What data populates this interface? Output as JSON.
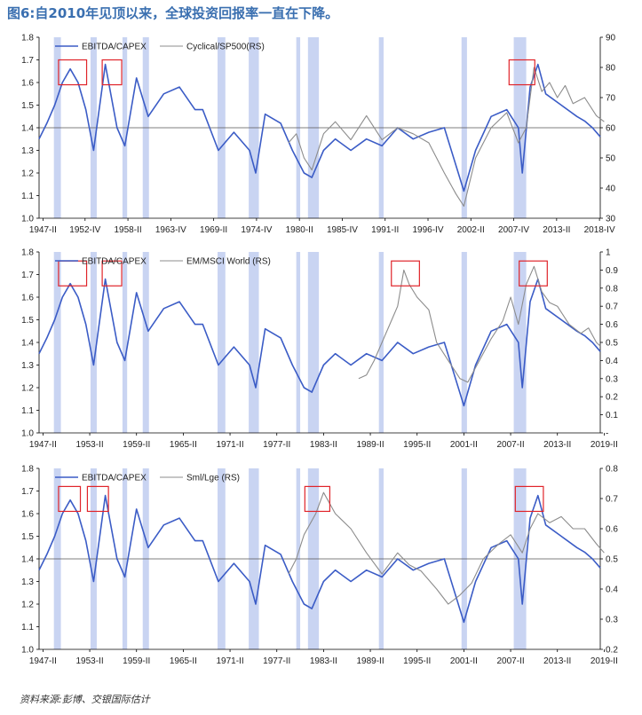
{
  "figure_title": "图6:自2010年见顶以来，全球投资回报率一直在下降。",
  "source_note": "资料来源:彭博、交银国际估计",
  "colors": {
    "primary": "#3b5cc6",
    "secondary": "#8c8c8c",
    "recession": "#c9d4f2",
    "highlight": "#e0242a",
    "axis": "#000000"
  },
  "chart_data": [
    {
      "type": "line",
      "legend": [
        "EBITDA/CAPEX",
        "Cyclical/SP500(RS)"
      ],
      "x_range": [
        1947,
        2019
      ],
      "x_ticks": [
        "1947-II",
        "1952-IV",
        "1958-II",
        "1963-IV",
        "1969-II",
        "1974-IV",
        "1980-II",
        "1985-IV",
        "1991-II",
        "1996-IV",
        "2002-II",
        "2007-IV",
        "2013-II",
        "2018-IV"
      ],
      "x_tick_years": [
        1947.5,
        1952.9,
        1958.4,
        1963.9,
        1969.4,
        1974.9,
        1980.4,
        1985.9,
        1991.4,
        1996.9,
        2002.4,
        2007.9,
        2013.4,
        2018.9
      ],
      "y_left": {
        "range": [
          1.0,
          1.8
        ],
        "ticks": [
          "1.0",
          "1.1",
          "1.2",
          "1.3",
          "1.4",
          "1.5",
          "1.6",
          "1.7",
          "1.8"
        ],
        "values": [
          1.0,
          1.1,
          1.2,
          1.3,
          1.4,
          1.5,
          1.6,
          1.7,
          1.8
        ]
      },
      "y_right": {
        "range": [
          30,
          90
        ],
        "ticks": [
          "30",
          "40",
          "50",
          "60",
          "70",
          "80",
          "90"
        ],
        "values": [
          30,
          40,
          50,
          60,
          70,
          80,
          90
        ]
      },
      "reference_line_left": 1.4,
      "recessions": [
        [
          1948.9,
          1949.8
        ],
        [
          1953.6,
          1954.4
        ],
        [
          1957.7,
          1958.3
        ],
        [
          1960.3,
          1961.1
        ],
        [
          1969.9,
          1970.9
        ],
        [
          1973.9,
          1975.2
        ],
        [
          1980.0,
          1980.5
        ],
        [
          1981.5,
          1982.9
        ],
        [
          1990.6,
          1991.2
        ],
        [
          2001.2,
          2001.9
        ],
        [
          2007.9,
          2009.5
        ]
      ],
      "highlights": [
        [
          1949.5,
          1953.1
        ],
        [
          1955.1,
          1957.6
        ],
        [
          2007.3,
          2010.6
        ]
      ],
      "highlight_value_range": [
        1.59,
        1.7
      ],
      "series": [
        {
          "name": "EBITDA/CAPEX",
          "axis": "left",
          "x": [
            1947.0,
            1948.0,
            1949.0,
            1950.0,
            1951.0,
            1952.0,
            1953.0,
            1954.0,
            1955.5,
            1957.0,
            1958.0,
            1959.5,
            1961.0,
            1963.0,
            1965.0,
            1967.0,
            1968.0,
            1970.0,
            1972.0,
            1974.0,
            1974.8,
            1976.0,
            1978.0,
            1979.5,
            1981.0,
            1982.0,
            1983.5,
            1985.0,
            1987.0,
            1989.0,
            1991.0,
            1993.0,
            1995.0,
            1997.0,
            1999.0,
            2001.5,
            2003.0,
            2005.0,
            2007.0,
            2008.5,
            2009.0,
            2010.0,
            2011.0,
            2012.0,
            2014.0,
            2016.0,
            2017.0,
            2018.0,
            2019.0
          ],
          "values": [
            1.35,
            1.42,
            1.5,
            1.6,
            1.66,
            1.6,
            1.48,
            1.3,
            1.68,
            1.4,
            1.32,
            1.62,
            1.45,
            1.55,
            1.58,
            1.48,
            1.48,
            1.3,
            1.38,
            1.3,
            1.2,
            1.46,
            1.42,
            1.3,
            1.2,
            1.18,
            1.3,
            1.35,
            1.3,
            1.35,
            1.32,
            1.4,
            1.35,
            1.38,
            1.4,
            1.12,
            1.3,
            1.45,
            1.48,
            1.4,
            1.2,
            1.58,
            1.68,
            1.55,
            1.5,
            1.45,
            1.43,
            1.4,
            1.36
          ]
        },
        {
          "name": "Cyclical/SP500(RS)",
          "axis": "right",
          "x": [
            1979.0,
            1980.0,
            1981.0,
            1982.0,
            1983.5,
            1985.0,
            1987.0,
            1989.0,
            1991.0,
            1993.0,
            1995.0,
            1997.0,
            1999.0,
            2000.5,
            2001.5,
            2003.0,
            2005.0,
            2007.0,
            2008.5,
            2009.5,
            2010.5,
            2011.5,
            2012.5,
            2013.5,
            2014.5,
            2015.5,
            2017.0,
            2018.5,
            2019.5
          ],
          "values": [
            55,
            58,
            50,
            46,
            58,
            62,
            56,
            64,
            56,
            60,
            58,
            55,
            45,
            38,
            34,
            50,
            60,
            65,
            55,
            60,
            80,
            72,
            75,
            70,
            74,
            68,
            70,
            64,
            62
          ]
        }
      ]
    },
    {
      "type": "line",
      "legend": [
        "EBITDA/CAPEX",
        "EM/MSCI World (RS)"
      ],
      "x_range": [
        1947,
        2019
      ],
      "x_ticks": [
        "1947-II",
        "1953-II",
        "1959-II",
        "1965-II",
        "1971-II",
        "1977-II",
        "1983-II",
        "1989-II",
        "1995-II",
        "2001-II",
        "2007-II",
        "2013-II",
        "2019-II"
      ],
      "x_tick_years": [
        1947.5,
        1953.5,
        1959.5,
        1965.5,
        1971.5,
        1977.5,
        1983.5,
        1989.5,
        1995.5,
        2001.5,
        2007.5,
        2013.5,
        2019.5
      ],
      "y_left": {
        "range": [
          1.0,
          1.8
        ],
        "ticks": [
          "1.0",
          "1.1",
          "1.2",
          "1.3",
          "1.4",
          "1.5",
          "1.6",
          "1.7",
          "1.8"
        ],
        "values": [
          1.0,
          1.1,
          1.2,
          1.3,
          1.4,
          1.5,
          1.6,
          1.7,
          1.8
        ]
      },
      "y_right": {
        "range": [
          0.0,
          1.0
        ],
        "ticks": [
          "-",
          "0.1",
          "0.2",
          "0.3",
          "0.4",
          "0.5",
          "0.6",
          "0.7",
          "0.8",
          "0.9",
          "1"
        ],
        "values": [
          0.0,
          0.1,
          0.2,
          0.3,
          0.4,
          0.5,
          0.6,
          0.7,
          0.8,
          0.9,
          1.0
        ]
      },
      "recessions": [
        [
          1948.9,
          1949.8
        ],
        [
          1953.6,
          1954.4
        ],
        [
          1957.7,
          1958.3
        ],
        [
          1960.3,
          1961.1
        ],
        [
          1969.9,
          1970.9
        ],
        [
          1973.9,
          1975.2
        ],
        [
          1980.0,
          1980.5
        ],
        [
          1981.5,
          1982.9
        ],
        [
          1990.6,
          1991.2
        ],
        [
          2001.2,
          2001.9
        ],
        [
          2007.9,
          2009.5
        ]
      ],
      "highlights": [
        [
          1949.5,
          1953.1
        ],
        [
          1955.1,
          1957.6
        ],
        [
          1992.2,
          1995.8
        ],
        [
          2008.6,
          2012.2
        ]
      ],
      "highlight_value_range": [
        1.65,
        1.76
      ],
      "series": [
        {
          "name": "EBITDA/CAPEX",
          "axis": "left",
          "x": [
            1947.0,
            1948.0,
            1949.0,
            1950.0,
            1951.0,
            1952.0,
            1953.0,
            1954.0,
            1955.5,
            1957.0,
            1958.0,
            1959.5,
            1961.0,
            1963.0,
            1965.0,
            1967.0,
            1968.0,
            1970.0,
            1972.0,
            1974.0,
            1974.8,
            1976.0,
            1978.0,
            1979.5,
            1981.0,
            1982.0,
            1983.5,
            1985.0,
            1987.0,
            1989.0,
            1991.0,
            1993.0,
            1995.0,
            1997.0,
            1999.0,
            2001.5,
            2003.0,
            2005.0,
            2007.0,
            2008.5,
            2009.0,
            2010.0,
            2011.0,
            2012.0,
            2014.0,
            2016.0,
            2017.0,
            2018.0,
            2019.0
          ],
          "values": [
            1.35,
            1.42,
            1.5,
            1.6,
            1.66,
            1.6,
            1.48,
            1.3,
            1.68,
            1.4,
            1.32,
            1.62,
            1.45,
            1.55,
            1.58,
            1.48,
            1.48,
            1.3,
            1.38,
            1.3,
            1.2,
            1.46,
            1.42,
            1.3,
            1.2,
            1.18,
            1.3,
            1.35,
            1.3,
            1.35,
            1.32,
            1.4,
            1.35,
            1.38,
            1.4,
            1.12,
            1.3,
            1.45,
            1.48,
            1.4,
            1.2,
            1.58,
            1.68,
            1.55,
            1.5,
            1.45,
            1.43,
            1.4,
            1.36
          ]
        },
        {
          "name": "EM/MSCI World (RS)",
          "axis": "right",
          "x": [
            1988.0,
            1989.0,
            1990.0,
            1991.0,
            1992.0,
            1993.0,
            1993.8,
            1994.5,
            1995.5,
            1997.0,
            1998.0,
            1999.5,
            2001.0,
            2002.0,
            2003.5,
            2005.0,
            2006.5,
            2007.5,
            2008.5,
            2009.5,
            2010.5,
            2011.5,
            2012.5,
            2013.5,
            2015.0,
            2016.5,
            2017.5,
            2018.5,
            2019.0
          ],
          "values": [
            0.3,
            0.32,
            0.4,
            0.5,
            0.6,
            0.7,
            0.9,
            0.82,
            0.75,
            0.68,
            0.5,
            0.4,
            0.3,
            0.28,
            0.4,
            0.52,
            0.62,
            0.75,
            0.6,
            0.82,
            0.92,
            0.78,
            0.72,
            0.7,
            0.6,
            0.55,
            0.58,
            0.5,
            0.48
          ]
        }
      ]
    },
    {
      "type": "line",
      "legend": [
        "EBITDA/CAPEX",
        "Sml/Lge (RS)"
      ],
      "x_range": [
        1947,
        2019
      ],
      "x_ticks": [
        "1947-II",
        "1953-II",
        "1959-II",
        "1965-II",
        "1971-II",
        "1977-II",
        "1983-II",
        "1989-II",
        "1995-II",
        "2001-II",
        "2007-II",
        "2013-II",
        "2019-II"
      ],
      "x_tick_years": [
        1947.5,
        1953.5,
        1959.5,
        1965.5,
        1971.5,
        1977.5,
        1983.5,
        1989.5,
        1995.5,
        2001.5,
        2007.5,
        2013.5,
        2019.5
      ],
      "y_left": {
        "range": [
          1.0,
          1.8
        ],
        "ticks": [
          "1.0",
          "1.1",
          "1.2",
          "1.3",
          "1.4",
          "1.5",
          "1.6",
          "1.7",
          "1.8"
        ],
        "values": [
          1.0,
          1.1,
          1.2,
          1.3,
          1.4,
          1.5,
          1.6,
          1.7,
          1.8
        ]
      },
      "y_right": {
        "range": [
          0.2,
          0.8
        ],
        "ticks": [
          "0.2",
          "0.3",
          "0.4",
          "0.5",
          "0.6",
          "0.7",
          "0.8"
        ],
        "values": [
          0.2,
          0.3,
          0.4,
          0.5,
          0.6,
          0.7,
          0.8
        ]
      },
      "reference_line_left": 1.4,
      "recessions": [
        [
          1948.9,
          1949.8
        ],
        [
          1953.6,
          1954.4
        ],
        [
          1957.7,
          1958.3
        ],
        [
          1960.3,
          1961.1
        ],
        [
          1969.9,
          1970.9
        ],
        [
          1973.9,
          1975.2
        ],
        [
          1980.0,
          1980.5
        ],
        [
          1981.5,
          1982.9
        ],
        [
          1990.6,
          1991.2
        ],
        [
          2001.2,
          2001.9
        ],
        [
          2007.9,
          2009.5
        ]
      ],
      "highlights": [
        [
          1949.5,
          1952.3
        ],
        [
          1953.2,
          1955.9
        ],
        [
          1981.1,
          1984.3
        ],
        [
          2008.1,
          2011.7
        ]
      ],
      "highlight_value_range": [
        1.61,
        1.72
      ],
      "series": [
        {
          "name": "EBITDA/CAPEX",
          "axis": "left",
          "x": [
            1947.0,
            1948.0,
            1949.0,
            1950.0,
            1951.0,
            1952.0,
            1953.0,
            1954.0,
            1955.5,
            1957.0,
            1958.0,
            1959.5,
            1961.0,
            1963.0,
            1965.0,
            1967.0,
            1968.0,
            1970.0,
            1972.0,
            1974.0,
            1974.8,
            1976.0,
            1978.0,
            1979.5,
            1981.0,
            1982.0,
            1983.5,
            1985.0,
            1987.0,
            1989.0,
            1991.0,
            1993.0,
            1995.0,
            1997.0,
            1999.0,
            2001.5,
            2003.0,
            2005.0,
            2007.0,
            2008.5,
            2009.0,
            2010.0,
            2011.0,
            2012.0,
            2014.0,
            2016.0,
            2017.0,
            2018.0,
            2019.0
          ],
          "values": [
            1.35,
            1.42,
            1.5,
            1.6,
            1.66,
            1.6,
            1.48,
            1.3,
            1.68,
            1.4,
            1.32,
            1.62,
            1.45,
            1.55,
            1.58,
            1.48,
            1.48,
            1.3,
            1.38,
            1.3,
            1.2,
            1.46,
            1.42,
            1.3,
            1.2,
            1.18,
            1.3,
            1.35,
            1.3,
            1.35,
            1.32,
            1.4,
            1.35,
            1.38,
            1.4,
            1.12,
            1.3,
            1.45,
            1.48,
            1.4,
            1.2,
            1.58,
            1.68,
            1.55,
            1.5,
            1.45,
            1.43,
            1.4,
            1.36
          ]
        },
        {
          "name": "Sml/Lge (RS)",
          "axis": "right",
          "x": [
            1979.0,
            1980.0,
            1981.0,
            1982.5,
            1983.5,
            1985.0,
            1987.0,
            1989.0,
            1991.0,
            1993.0,
            1994.5,
            1996.0,
            1998.0,
            1999.5,
            2001.0,
            2002.5,
            2004.0,
            2006.0,
            2007.5,
            2009.0,
            2010.0,
            2011.0,
            2012.5,
            2014.0,
            2015.5,
            2017.0,
            2018.5,
            2019.5
          ],
          "values": [
            0.45,
            0.5,
            0.58,
            0.65,
            0.72,
            0.65,
            0.6,
            0.52,
            0.45,
            0.52,
            0.48,
            0.46,
            0.4,
            0.35,
            0.38,
            0.42,
            0.5,
            0.55,
            0.58,
            0.52,
            0.6,
            0.65,
            0.62,
            0.64,
            0.6,
            0.6,
            0.55,
            0.52
          ]
        }
      ]
    }
  ]
}
